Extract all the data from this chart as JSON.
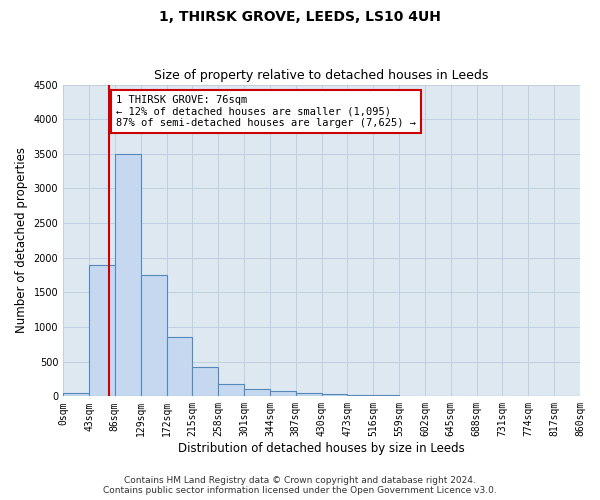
{
  "title": "1, THIRSK GROVE, LEEDS, LS10 4UH",
  "subtitle": "Size of property relative to detached houses in Leeds",
  "xlabel": "Distribution of detached houses by size in Leeds",
  "ylabel": "Number of detached properties",
  "bar_edges": [
    0,
    43,
    86,
    129,
    172,
    215,
    258,
    301,
    344,
    387,
    430,
    473,
    516,
    559,
    602,
    645,
    688,
    731,
    774,
    817,
    860
  ],
  "bar_heights": [
    50,
    1900,
    3500,
    1750,
    850,
    430,
    175,
    110,
    75,
    50,
    30,
    20,
    15,
    10,
    8,
    5,
    4,
    3,
    2,
    2
  ],
  "bar_color": "#c5d8ef",
  "bar_edge_color": "#5588bb",
  "property_line_x": 76,
  "property_line_color": "#cc0000",
  "annotation_text": "1 THIRSK GROVE: 76sqm\n← 12% of detached houses are smaller (1,095)\n87% of semi-detached houses are larger (7,625) →",
  "annotation_box_facecolor": "#ffffff",
  "annotation_box_edgecolor": "#cc0000",
  "ylim": [
    0,
    4500
  ],
  "yticks": [
    0,
    500,
    1000,
    1500,
    2000,
    2500,
    3000,
    3500,
    4000,
    4500
  ],
  "xtick_labels": [
    "0sqm",
    "43sqm",
    "86sqm",
    "129sqm",
    "172sqm",
    "215sqm",
    "258sqm",
    "301sqm",
    "344sqm",
    "387sqm",
    "430sqm",
    "473sqm",
    "516sqm",
    "559sqm",
    "602sqm",
    "645sqm",
    "688sqm",
    "731sqm",
    "774sqm",
    "817sqm",
    "860sqm"
  ],
  "footer_line1": "Contains HM Land Registry data © Crown copyright and database right 2024.",
  "footer_line2": "Contains public sector information licensed under the Open Government Licence v3.0.",
  "bg_color": "#ffffff",
  "plot_bg_color": "#dde8f0",
  "grid_color": "#c0d0e0",
  "title_fontsize": 10,
  "subtitle_fontsize": 9,
  "axis_label_fontsize": 8.5,
  "tick_fontsize": 7,
  "annotation_fontsize": 7.5,
  "footer_fontsize": 6.5
}
